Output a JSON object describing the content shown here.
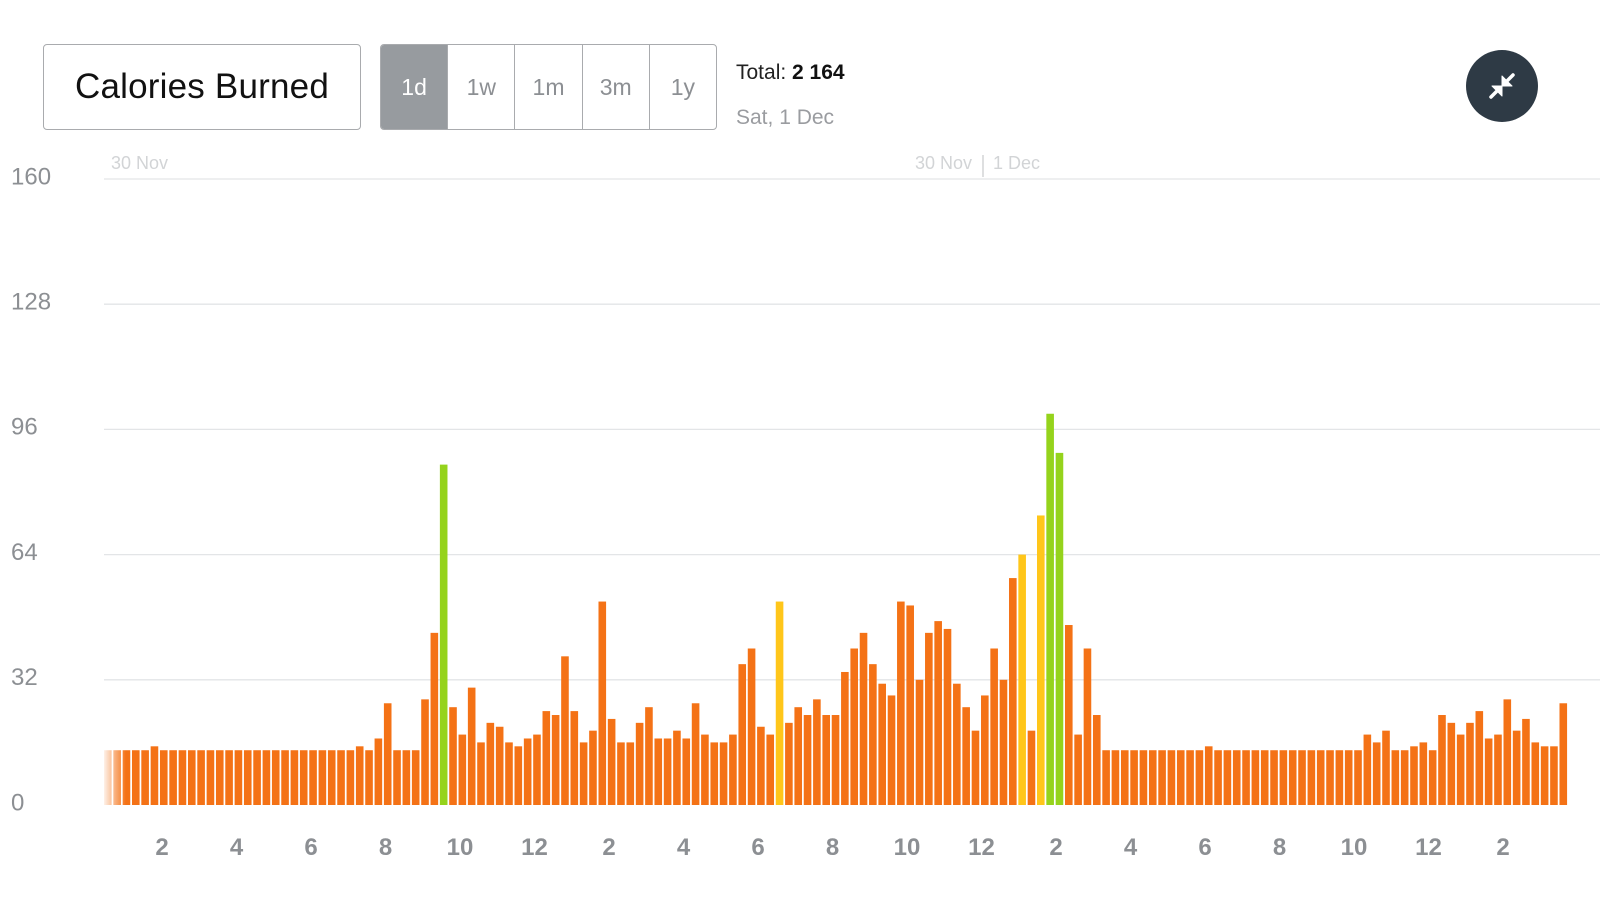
{
  "header": {
    "title": "Calories Burned",
    "ranges": [
      {
        "label": "1d",
        "active": true
      },
      {
        "label": "1w",
        "active": false
      },
      {
        "label": "1m",
        "active": false
      },
      {
        "label": "3m",
        "active": false
      },
      {
        "label": "1y",
        "active": false
      }
    ],
    "total_label": "Total:",
    "total_value": "2 164",
    "date": "Sat, 1 Dec",
    "collapse_icon": "collapse-arrows-icon"
  },
  "colors": {
    "low": "#f47216",
    "medium": "#ffc61a",
    "high": "#95d31c",
    "grid": "#e3e5e7",
    "button_active": "#979b9f",
    "collapse_bg": "#2e3a45"
  },
  "chart_data": {
    "type": "bar",
    "title": "Calories Burned",
    "ylim": [
      0,
      160
    ],
    "yticks": [
      0,
      32,
      64,
      96,
      128,
      160
    ],
    "xticks": [
      "2",
      "4",
      "6",
      "8",
      "10",
      "12",
      "2",
      "4",
      "6",
      "8",
      "10",
      "12",
      "2",
      "4",
      "6",
      "8",
      "10",
      "12",
      "2"
    ],
    "day_labels": [
      "30 Nov",
      "30 Nov",
      "1 Dec"
    ],
    "grid": true,
    "x_unit": "15-minute interval",
    "values": [
      14,
      14,
      14,
      14,
      14,
      15,
      14,
      14,
      14,
      14,
      14,
      14,
      14,
      14,
      14,
      14,
      14,
      14,
      14,
      14,
      14,
      14,
      14,
      14,
      14,
      14,
      14,
      15,
      14,
      17,
      26,
      14,
      14,
      14,
      27,
      44,
      87,
      25,
      18,
      30,
      16,
      21,
      20,
      16,
      15,
      17,
      18,
      24,
      23,
      38,
      24,
      16,
      19,
      52,
      22,
      16,
      16,
      21,
      25,
      17,
      17,
      19,
      17,
      26,
      18,
      16,
      16,
      18,
      36,
      40,
      20,
      18,
      52,
      21,
      25,
      23,
      27,
      23,
      23,
      34,
      40,
      44,
      36,
      31,
      28,
      52,
      51,
      32,
      44,
      47,
      45,
      31,
      25,
      19,
      28,
      40,
      32,
      58,
      64,
      19,
      74,
      100,
      90,
      46,
      18,
      40,
      23,
      14,
      14,
      14,
      14,
      14,
      14,
      14,
      14,
      14,
      14,
      14,
      15,
      14,
      14,
      14,
      14,
      14,
      14,
      14,
      14,
      14,
      14,
      14,
      14,
      14,
      14,
      14,
      14,
      18,
      16,
      19,
      14,
      14,
      15,
      16,
      14,
      23,
      21,
      18,
      21,
      24,
      17,
      18,
      27,
      19,
      22,
      16,
      15,
      15,
      26,
      17,
      20,
      39,
      40,
      40,
      15,
      15,
      15,
      49,
      21,
      15,
      27
    ],
    "levels": [
      "l",
      "l",
      "l",
      "l",
      "l",
      "l",
      "l",
      "l",
      "l",
      "l",
      "l",
      "l",
      "l",
      "l",
      "l",
      "l",
      "l",
      "l",
      "l",
      "l",
      "l",
      "l",
      "l",
      "l",
      "l",
      "l",
      "l",
      "l",
      "l",
      "l",
      "l",
      "l",
      "l",
      "l",
      "l",
      "l",
      "h",
      "l",
      "l",
      "l",
      "l",
      "l",
      "l",
      "l",
      "l",
      "l",
      "l",
      "l",
      "l",
      "l",
      "l",
      "l",
      "l",
      "l",
      "l",
      "l",
      "l",
      "l",
      "l",
      "l",
      "l",
      "l",
      "l",
      "l",
      "l",
      "l",
      "l",
      "l",
      "l",
      "l",
      "l",
      "l",
      "m",
      "l",
      "l",
      "l",
      "l",
      "l",
      "l",
      "l",
      "l",
      "l",
      "l",
      "l",
      "l",
      "l",
      "l",
      "l",
      "l",
      "l",
      "l",
      "l",
      "l",
      "l",
      "l",
      "l",
      "l",
      "l",
      "m",
      "l",
      "m",
      "h",
      "h",
      "l",
      "l",
      "l",
      "l",
      "l",
      "l",
      "l",
      "l",
      "l",
      "l",
      "l",
      "l",
      "l",
      "l",
      "l",
      "l",
      "l",
      "l",
      "l",
      "l",
      "l",
      "l",
      "l",
      "l",
      "l",
      "l",
      "l",
      "l",
      "l",
      "l",
      "l",
      "l",
      "l",
      "l",
      "l",
      "l",
      "l",
      "l",
      "l",
      "l",
      "l",
      "l",
      "l",
      "l",
      "l",
      "l",
      "l",
      "l",
      "l",
      "l",
      "l",
      "l",
      "l",
      "l",
      "l",
      "l",
      "l",
      "l",
      "l",
      "l",
      "l",
      "l",
      "m",
      "l",
      "l",
      "l"
    ]
  }
}
